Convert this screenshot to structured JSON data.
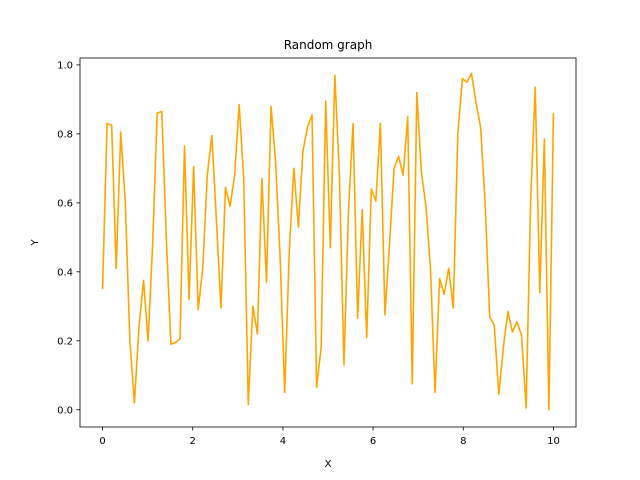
{
  "chart_data": {
    "type": "line",
    "title": "Random graph",
    "xlabel": "X",
    "ylabel": "Y",
    "xlim": [
      -0.5,
      10.5
    ],
    "ylim": [
      -0.05,
      1.02
    ],
    "xticks": [
      0,
      2,
      4,
      6,
      8,
      10
    ],
    "xtick_labels": [
      "0",
      "2",
      "4",
      "6",
      "8",
      "10"
    ],
    "yticks": [
      0.0,
      0.2,
      0.4,
      0.6,
      0.8,
      1.0
    ],
    "ytick_labels": [
      "0.0",
      "0.2",
      "0.4",
      "0.6",
      "0.8",
      "1.0"
    ],
    "grid": false,
    "line_color": "#ffa500",
    "series": [
      {
        "x": [
          0.0,
          0.101,
          0.202,
          0.303,
          0.404,
          0.505,
          0.606,
          0.707,
          0.808,
          0.909,
          1.01,
          1.111,
          1.212,
          1.313,
          1.414,
          1.515,
          1.616,
          1.717,
          1.818,
          1.919,
          2.02,
          2.121,
          2.222,
          2.323,
          2.424,
          2.525,
          2.626,
          2.727,
          2.828,
          2.929,
          3.03,
          3.131,
          3.232,
          3.333,
          3.434,
          3.535,
          3.636,
          3.737,
          3.838,
          3.939,
          4.04,
          4.141,
          4.242,
          4.343,
          4.444,
          4.545,
          4.646,
          4.747,
          4.848,
          4.949,
          5.051,
          5.152,
          5.253,
          5.354,
          5.455,
          5.556,
          5.657,
          5.758,
          5.859,
          5.96,
          6.061,
          6.162,
          6.263,
          6.364,
          6.465,
          6.566,
          6.667,
          6.768,
          6.869,
          6.97,
          7.071,
          7.172,
          7.273,
          7.374,
          7.475,
          7.576,
          7.677,
          7.778,
          7.879,
          7.98,
          8.081,
          8.182,
          8.283,
          8.384,
          8.485,
          8.586,
          8.687,
          8.788,
          8.889,
          8.99,
          9.091,
          9.192,
          9.293,
          9.394,
          9.495,
          9.596,
          9.697,
          9.798,
          9.899,
          10.0
        ],
        "y": [
          0.35,
          0.83,
          0.825,
          0.41,
          0.805,
          0.6,
          0.2,
          0.02,
          0.24,
          0.375,
          0.2,
          0.48,
          0.86,
          0.865,
          0.5,
          0.19,
          0.195,
          0.205,
          0.765,
          0.32,
          0.705,
          0.29,
          0.41,
          0.68,
          0.795,
          0.55,
          0.295,
          0.645,
          0.59,
          0.68,
          0.885,
          0.67,
          0.015,
          0.3,
          0.22,
          0.67,
          0.37,
          0.88,
          0.72,
          0.44,
          0.05,
          0.46,
          0.7,
          0.53,
          0.75,
          0.82,
          0.855,
          0.065,
          0.18,
          0.895,
          0.47,
          0.97,
          0.68,
          0.13,
          0.58,
          0.83,
          0.265,
          0.58,
          0.21,
          0.64,
          0.605,
          0.83,
          0.275,
          0.48,
          0.7,
          0.735,
          0.68,
          0.85,
          0.075,
          0.92,
          0.69,
          0.59,
          0.41,
          0.05,
          0.38,
          0.335,
          0.41,
          0.295,
          0.8,
          0.96,
          0.95,
          0.975,
          0.89,
          0.82,
          0.6,
          0.27,
          0.245,
          0.045,
          0.18,
          0.285,
          0.225,
          0.255,
          0.215,
          0.005,
          0.61,
          0.935,
          0.34,
          0.785,
          0.0,
          0.86
        ]
      }
    ]
  }
}
